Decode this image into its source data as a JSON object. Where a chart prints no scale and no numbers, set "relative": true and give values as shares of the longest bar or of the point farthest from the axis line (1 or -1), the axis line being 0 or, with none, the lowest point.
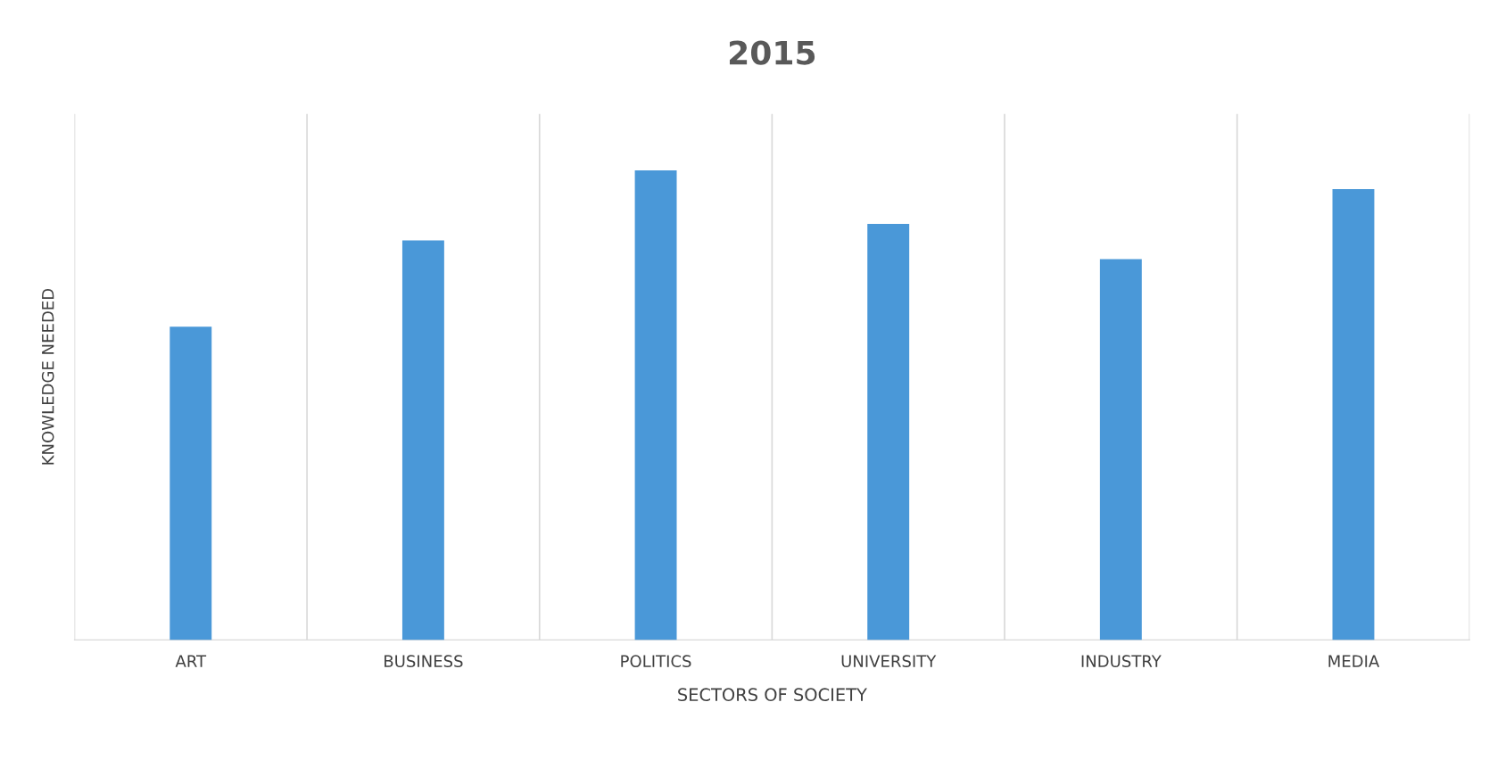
{
  "chart_data": {
    "type": "bar",
    "title": "2015",
    "xlabel": "SECTORS OF SOCIETY",
    "ylabel": "KNOWLEDGE NEEDED",
    "categories": [
      "ART",
      "BUSINESS",
      "POLITICS",
      "UNIVERSITY",
      "INDUSTRY",
      "MEDIA"
    ],
    "values": [
      0.667,
      0.851,
      1,
      0.886,
      0.811,
      0.96
    ],
    "color": "#4a98d8",
    "relative": true,
    "grid": "x"
  }
}
